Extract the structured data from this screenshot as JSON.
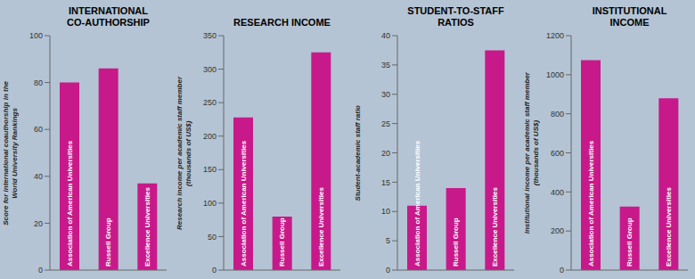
{
  "chart_data": [
    {
      "type": "bar",
      "title": "INTERNATIONAL\nCO-AUTHORSHIP",
      "ylabel": "Score for international coauthorship in the\nWorld University Rankings",
      "categories": [
        "Association of American Universities",
        "Russell Group",
        "Excellence Universities"
      ],
      "values": [
        80,
        86,
        37
      ],
      "ylim": [
        0,
        100
      ],
      "yticks": [
        0,
        20,
        40,
        60,
        80,
        100
      ],
      "color": "#C8198A",
      "grid": false,
      "tick_labels": "y"
    },
    {
      "type": "bar",
      "title": "RESEARCH INCOME",
      "ylabel": "Research income per academic staff member\n(thousands of US$)",
      "categories": [
        "Association of American Universities",
        "Russell Group",
        "Excellence Universities"
      ],
      "values": [
        228,
        80,
        325
      ],
      "ylim": [
        0,
        350
      ],
      "yticks": [
        0,
        50,
        100,
        150,
        200,
        250,
        300,
        350
      ],
      "color": "#C8198A",
      "grid": false,
      "tick_labels": "y"
    },
    {
      "type": "bar",
      "title": "STUDENT-TO-STAFF\nRATIOS",
      "ylabel": "Student-academic staff ratio",
      "categories": [
        "Association of American Universities",
        "Russell Group",
        "Excellence Universities"
      ],
      "values": [
        11,
        14,
        37.5
      ],
      "ylim": [
        0,
        40
      ],
      "yticks": [
        0,
        5,
        10,
        15,
        20,
        25,
        30,
        35,
        40
      ],
      "color": "#C8198A",
      "grid": false,
      "tick_labels": "y"
    },
    {
      "type": "bar",
      "title": "INSTITUTIONAL\nINCOME",
      "ylabel": "Institutional income per academic staff member\n(thousands of US$)",
      "categories": [
        "Association of American Universities",
        "Russell Group",
        "Excellence Universities"
      ],
      "values": [
        1075,
        325,
        880
      ],
      "ylim": [
        0,
        1200
      ],
      "yticks": [
        0,
        200,
        400,
        600,
        800,
        1000,
        1200
      ],
      "color": "#C8198A",
      "grid": false,
      "tick_labels": "y"
    }
  ]
}
